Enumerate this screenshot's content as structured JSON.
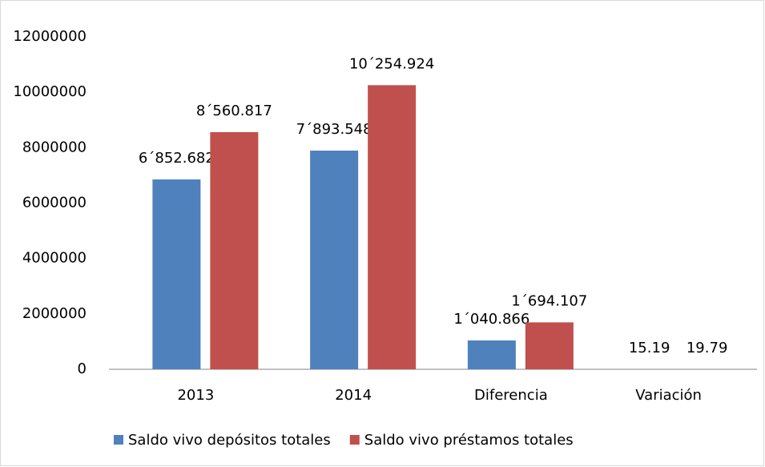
{
  "chart_data": {
    "type": "bar",
    "categories": [
      "2013",
      "2014",
      "Diferencia",
      "Variación"
    ],
    "series": [
      {
        "name": "Saldo vivo depósitos totales",
        "color": "#4f81bd",
        "values": [
          6852682,
          7893548,
          1040866,
          15.19
        ],
        "value_labels": [
          "6´852.682",
          "7´893.548",
          "1´040.866",
          "15.19"
        ]
      },
      {
        "name": "Saldo vivo préstamos totales",
        "color": "#c0504d",
        "values": [
          8560817,
          10254924,
          1694107,
          19.79
        ],
        "value_labels": [
          "8´560.817",
          "10´254.924",
          "1´694.107",
          "19.79"
        ]
      }
    ],
    "ylim": [
      0,
      12000000
    ],
    "yticks": [
      0,
      2000000,
      4000000,
      6000000,
      8000000,
      10000000,
      12000000
    ],
    "grid": false,
    "legend": "bottom"
  }
}
